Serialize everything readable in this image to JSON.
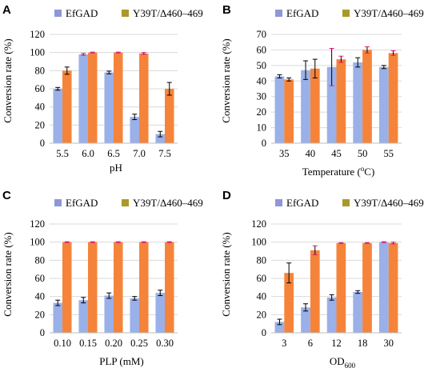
{
  "colors": {
    "EfGAD": "#9AB0E8",
    "Y39T_D460_469": "#F5843A",
    "error_bar": "#000000",
    "error_cap_accent": "#E2177E",
    "legend_marker_EfGAD": "#8E97D8",
    "legend_marker_Y39T": "#A89A2A"
  },
  "chart_data": [
    {
      "panel": "A",
      "type": "bar",
      "legend": [
        "EfGAD",
        "Y39T/Δ460–469"
      ],
      "legend_placement": "top",
      "xlabel": "pH",
      "ylabel": "Conversion rate (%)",
      "categories": [
        "5.5",
        "6.0",
        "6.5",
        "7.0",
        "7.5"
      ],
      "ylim": [
        0,
        120
      ],
      "yticks": [
        "0",
        "20",
        "40",
        "60",
        "80",
        "100",
        "120"
      ],
      "grid": true,
      "series": [
        {
          "name": "EfGAD",
          "values": [
            60,
            98,
            78,
            29,
            10
          ],
          "errors": [
            1.5,
            1,
            1.5,
            3,
            3
          ]
        },
        {
          "name": "Y39T/Δ460–469",
          "values": [
            80,
            100,
            100,
            99,
            60
          ],
          "errors": [
            4,
            0.5,
            0.5,
            1,
            7
          ]
        }
      ]
    },
    {
      "panel": "B",
      "type": "bar",
      "legend": [
        "EfGAD",
        "Y39T/Δ460–469"
      ],
      "legend_placement": "top",
      "xlabel": "Temperature (°C)",
      "xlabel_main": "Temperature (",
      "xlabel_sup": "o",
      "xlabel_tail": "C)",
      "ylabel": "Conversion rate (%)",
      "categories": [
        "35",
        "40",
        "45",
        "50",
        "55"
      ],
      "ylim": [
        0,
        70
      ],
      "yticks": [
        "0",
        "10",
        "20",
        "30",
        "40",
        "50",
        "60",
        "70"
      ],
      "grid": true,
      "series": [
        {
          "name": "EfGAD",
          "values": [
            43,
            47,
            49,
            52,
            49
          ],
          "errors": [
            1,
            6,
            12,
            3,
            1
          ]
        },
        {
          "name": "Y39T/Δ460–469",
          "values": [
            41,
            48,
            54,
            60,
            58
          ],
          "errors": [
            1,
            6,
            2,
            2,
            1.5
          ]
        }
      ]
    },
    {
      "panel": "C",
      "type": "bar",
      "legend": [
        "EfGAD",
        "Y39T/Δ460–469"
      ],
      "legend_placement": "top",
      "xlabel": "PLP (mM)",
      "ylabel": "Conversion rate (%)",
      "categories": [
        "0.10",
        "0.15",
        "0.20",
        "0.25",
        "0.30"
      ],
      "ylim": [
        0,
        120
      ],
      "yticks": [
        "0",
        "20",
        "40",
        "60",
        "80",
        "100",
        "120"
      ],
      "grid": true,
      "series": [
        {
          "name": "EfGAD",
          "values": [
            33,
            36,
            41,
            38,
            44
          ],
          "errors": [
            3,
            3,
            3,
            2,
            3
          ]
        },
        {
          "name": "Y39T/Δ460–469",
          "values": [
            100,
            100,
            100,
            100,
            100
          ],
          "errors": [
            0.5,
            0.5,
            0.5,
            0.5,
            0.5
          ]
        }
      ]
    },
    {
      "panel": "D",
      "type": "bar",
      "legend": [
        "EfGAD",
        "Y39T/Δ460–469"
      ],
      "legend_placement": "top",
      "xlabel": "OD600",
      "xlabel_main": "OD",
      "xlabel_sub": "600",
      "ylabel": "Conversion rate (%)",
      "categories": [
        "3",
        "6",
        "12",
        "18",
        "30"
      ],
      "ylim": [
        0,
        120
      ],
      "yticks": [
        "0",
        "20",
        "40",
        "60",
        "80",
        "100",
        "120"
      ],
      "grid": true,
      "series": [
        {
          "name": "EfGAD",
          "values": [
            12,
            28,
            39,
            45,
            100
          ],
          "errors": [
            3,
            4,
            3,
            1.5,
            0.5
          ]
        },
        {
          "name": "Y39T/Δ460–469",
          "values": [
            66,
            91,
            99,
            99,
            99
          ],
          "errors": [
            11,
            5,
            0.5,
            0.5,
            1
          ]
        }
      ]
    }
  ]
}
